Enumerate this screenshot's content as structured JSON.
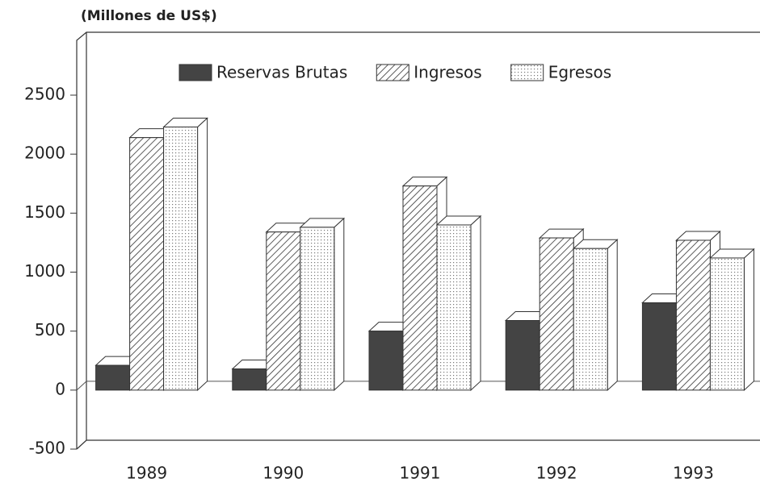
{
  "chart_data": {
    "type": "bar3d",
    "unit_label": "(Millones de US$)",
    "categories": [
      "1989",
      "1990",
      "1991",
      "1992",
      "1993"
    ],
    "series": [
      {
        "name": "Reservas Brutas",
        "color": "#444444",
        "pattern": "solid",
        "values": [
          210,
          180,
          500,
          590,
          740
        ]
      },
      {
        "name": "Ingresos",
        "color": "#444444",
        "pattern": "hatch",
        "values": [
          2140,
          1340,
          1730,
          1290,
          1270
        ]
      },
      {
        "name": "Egresos",
        "color": "#888888",
        "pattern": "dots",
        "values": [
          2230,
          1380,
          1400,
          1200,
          1120
        ]
      }
    ],
    "ylim": [
      -500,
      2500
    ],
    "yticks": [
      -500,
      0,
      500,
      1000,
      1500,
      2000,
      2500
    ],
    "legend": "top"
  }
}
